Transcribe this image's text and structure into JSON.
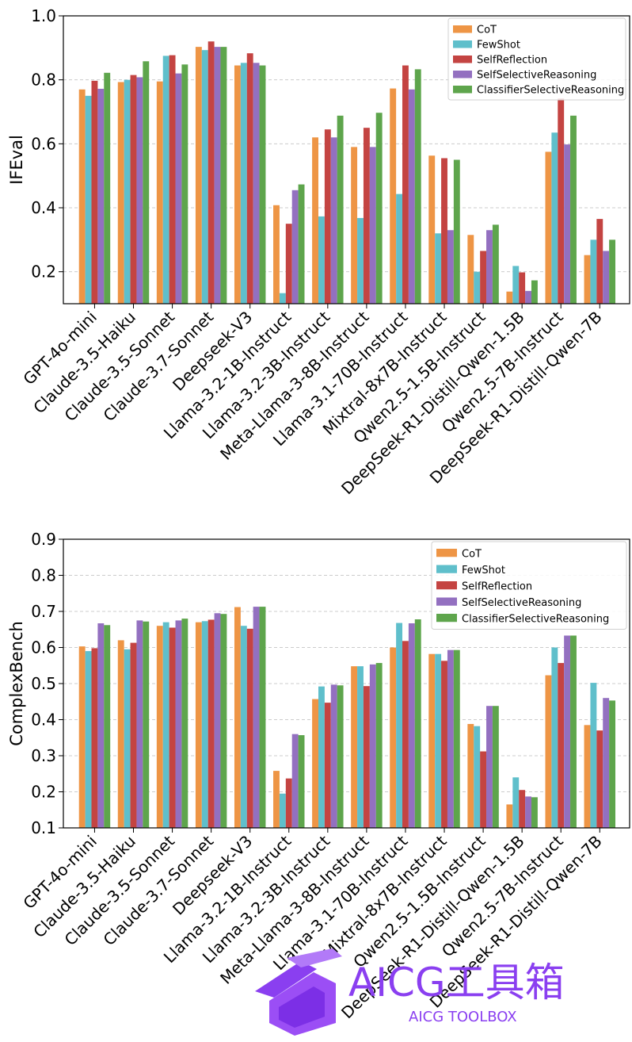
{
  "colors": {
    "CoT": "#ee9545",
    "FewShot": "#5fbfcb",
    "SelfReflection": "#c44442",
    "SelfSelectiveReasoning": "#9370c0",
    "ClassifierSelectiveReasoning": "#5ea54c",
    "grid": "#cccccc",
    "watermark_purple": "#8a3ff0"
  },
  "watermark": {
    "title": "AICG工具箱",
    "subtitle": "AICG TOOLBOX"
  },
  "chart_data": [
    {
      "type": "bar",
      "title": "",
      "xlabel": "",
      "ylabel": "IFEval",
      "ylim": [
        0.1,
        1.0
      ],
      "yticks": [
        "0.2",
        "0.4",
        "0.6",
        "0.8",
        "1.0"
      ],
      "grid": true,
      "legend_position": "top-right",
      "categories": [
        "GPT-4o-mini",
        "Claude-3.5-Haiku",
        "Claude-3.5-Sonnet",
        "Claude-3.7-Sonnet",
        "Deepseek-V3",
        "Llama-3.2-1B-Instruct",
        "Llama-3.2-3B-Instruct",
        "Meta-Llama-3-8B-Instruct",
        "Llama-3.1-70B-Instruct",
        "Mixtral-8x7B-Instruct",
        "Qwen2.5-1.5B-Instruct",
        "DeepSeek-R1-Distill-Qwen-1.5B",
        "Qwen2.5-7B-Instruct",
        "DeepSeek-R1-Distill-Qwen-7B"
      ],
      "series": [
        {
          "name": "CoT",
          "values": [
            0.77,
            0.793,
            0.795,
            0.903,
            0.845,
            0.408,
            0.62,
            0.59,
            0.773,
            0.563,
            0.315,
            0.138,
            0.575,
            0.252
          ]
        },
        {
          "name": "FewShot",
          "values": [
            0.75,
            0.8,
            0.875,
            0.893,
            0.853,
            0.133,
            0.373,
            0.368,
            0.443,
            0.32,
            0.2,
            0.218,
            0.635,
            0.3
          ]
        },
        {
          "name": "SelfReflection",
          "values": [
            0.797,
            0.815,
            0.877,
            0.92,
            0.883,
            0.35,
            0.645,
            0.65,
            0.845,
            0.555,
            0.265,
            0.198,
            0.742,
            0.365
          ]
        },
        {
          "name": "SelfSelectiveReasoning",
          "values": [
            0.772,
            0.808,
            0.82,
            0.903,
            0.853,
            0.455,
            0.62,
            0.59,
            0.77,
            0.33,
            0.33,
            0.14,
            0.598,
            0.265
          ]
        },
        {
          "name": "ClassifierSelectiveReasoning",
          "values": [
            0.822,
            0.858,
            0.848,
            0.903,
            0.845,
            0.473,
            0.688,
            0.697,
            0.833,
            0.55,
            0.347,
            0.173,
            0.688,
            0.3
          ]
        }
      ]
    },
    {
      "type": "bar",
      "title": "",
      "xlabel": "",
      "ylabel": "ComplexBench",
      "ylim": [
        0.1,
        0.9
      ],
      "yticks": [
        "0.1",
        "0.2",
        "0.3",
        "0.4",
        "0.5",
        "0.6",
        "0.7",
        "0.8",
        "0.9"
      ],
      "grid": true,
      "legend_position": "top-right",
      "categories": [
        "GPT-4o-mini",
        "Claude-3.5-Haiku",
        "Claude-3.5-Sonnet",
        "Claude-3.7-Sonnet",
        "Deepseek-V3",
        "Llama-3.2-1B-Instruct",
        "Llama-3.2-3B-Instruct",
        "Meta-Llama-3-8B-Instruct",
        "Llama-3.1-70B-Instruct",
        "Mixtral-8x7B-Instruct",
        "Qwen2.5-1.5B-Instruct",
        "DeepSeek-R1-Distill-Qwen-1.5B",
        "Qwen2.5-7B-Instruct",
        "DeepSeek-R1-Distill-Qwen-7B"
      ],
      "series": [
        {
          "name": "CoT",
          "values": [
            0.603,
            0.62,
            0.66,
            0.67,
            0.712,
            0.258,
            0.457,
            0.548,
            0.6,
            0.582,
            0.388,
            0.165,
            0.523,
            0.385
          ]
        },
        {
          "name": "FewShot",
          "values": [
            0.59,
            0.595,
            0.67,
            0.673,
            0.66,
            0.195,
            0.492,
            0.548,
            0.668,
            0.582,
            0.382,
            0.24,
            0.6,
            0.502
          ]
        },
        {
          "name": "SelfReflection",
          "values": [
            0.598,
            0.613,
            0.655,
            0.677,
            0.652,
            0.237,
            0.447,
            0.493,
            0.618,
            0.563,
            0.312,
            0.205,
            0.557,
            0.37
          ]
        },
        {
          "name": "SelfSelectiveReasoning",
          "values": [
            0.667,
            0.675,
            0.675,
            0.695,
            0.713,
            0.36,
            0.497,
            0.553,
            0.667,
            0.593,
            0.438,
            0.187,
            0.633,
            0.46
          ]
        },
        {
          "name": "ClassifierSelectiveReasoning",
          "values": [
            0.662,
            0.672,
            0.68,
            0.693,
            0.713,
            0.357,
            0.495,
            0.557,
            0.678,
            0.593,
            0.438,
            0.185,
            0.633,
            0.453
          ]
        }
      ]
    }
  ]
}
